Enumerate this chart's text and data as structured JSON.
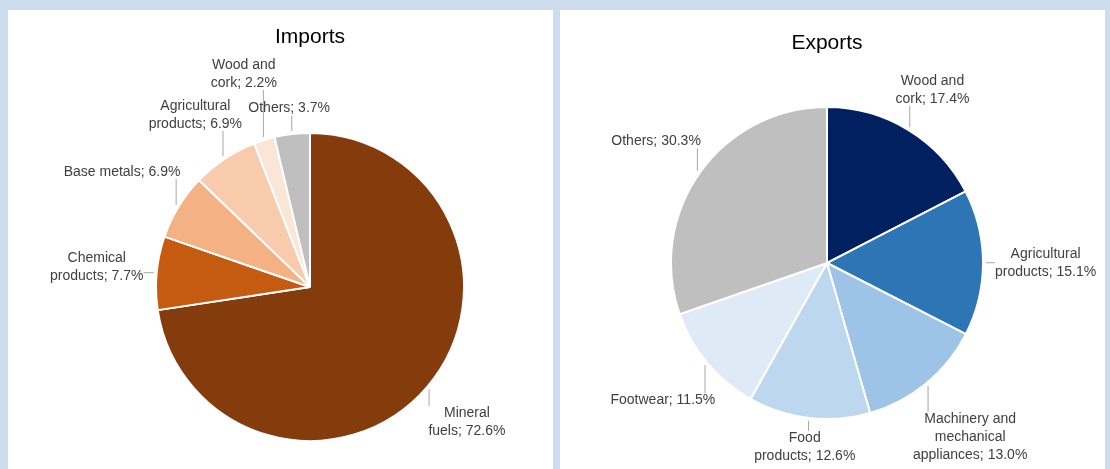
{
  "chart_data": [
    {
      "type": "pie",
      "title": "Imports",
      "categories": [
        "Mineral fuels",
        "Chemical products",
        "Base metals",
        "Agricultural products",
        "Wood and cork",
        "Others"
      ],
      "values": [
        72.6,
        7.7,
        6.9,
        6.9,
        2.2,
        3.7
      ],
      "value_labels": [
        "72.6%",
        "7.7%",
        "6.9%",
        "6.9%",
        "2.2%",
        "3.7%"
      ],
      "colors": [
        "#843c0c",
        "#c55a11",
        "#f4b183",
        "#f8cbad",
        "#fbe5d6",
        "#bfbfbf"
      ],
      "legend": false
    },
    {
      "type": "pie",
      "title": "Exports",
      "categories": [
        "Wood and cork",
        "Agricultural products",
        "Machinery and mechanical appliances",
        "Food products",
        "Footwear",
        "Others"
      ],
      "values": [
        17.4,
        15.1,
        13.0,
        12.6,
        11.5,
        30.3
      ],
      "value_labels": [
        "17.4%",
        "15.1%",
        "13.0%",
        "12.6%",
        "11.5%",
        "30.3%"
      ],
      "colors": [
        "#002060",
        "#2e75b6",
        "#9dc3e6",
        "#bdd7ee",
        "#deebf7",
        "#bfbfbf"
      ],
      "legend": false
    }
  ]
}
